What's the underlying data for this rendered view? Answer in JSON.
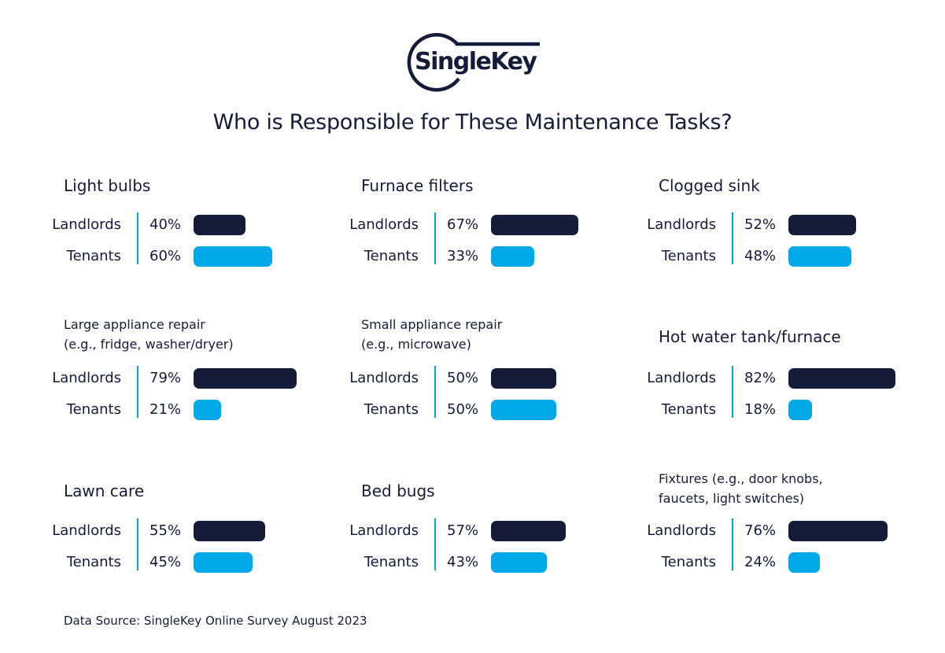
{
  "logo": {
    "text": "SingleKey"
  },
  "colors": {
    "landlords": "#141c3a",
    "tenants": "#00a8e8",
    "divider": "#00a8e8"
  },
  "chart_data": {
    "type": "bar",
    "orientation": "horizontal",
    "title": "Who is Responsible for These Maintenance Tasks?",
    "unit": "%",
    "xlim": [
      0,
      100
    ],
    "series_labels": [
      "Landlords",
      "Tenants"
    ],
    "groups": [
      {
        "title": "Light bulbs",
        "landlords": 40,
        "tenants": 60
      },
      {
        "title": "Furnace filters",
        "landlords": 67,
        "tenants": 33
      },
      {
        "title": "Clogged sink",
        "landlords": 52,
        "tenants": 48
      },
      {
        "title": "Large appliance repair\n(e.g., fridge, washer/dryer)",
        "landlords": 79,
        "tenants": 21
      },
      {
        "title": "Small appliance repair\n(e.g., microwave)",
        "landlords": 50,
        "tenants": 50
      },
      {
        "title": "Hot water tank/furnace",
        "landlords": 82,
        "tenants": 18
      },
      {
        "title": "Lawn care",
        "landlords": 55,
        "tenants": 45
      },
      {
        "title": "Bed bugs",
        "landlords": 57,
        "tenants": 43
      },
      {
        "title": "Fixtures (e.g., door knobs,\nfaucets, light switches)",
        "landlords": 76,
        "tenants": 24
      }
    ],
    "source": "Data Source: SingleKey Online Survey August 2023"
  }
}
